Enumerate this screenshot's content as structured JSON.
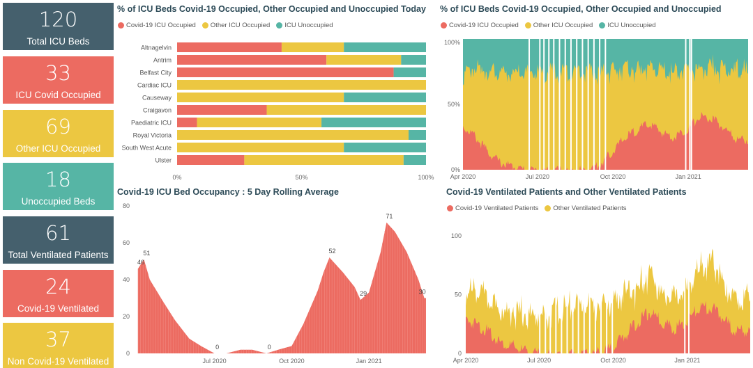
{
  "colors": {
    "covid": "#ec6b61",
    "other": "#ecc741",
    "unocc": "#56b5a5",
    "dark": "#45606d"
  },
  "kpis": [
    {
      "value": "120",
      "label": "Total ICU Beds",
      "color": "#45606d"
    },
    {
      "value": "33",
      "label": "ICU Covid Occupied",
      "color": "#ec6b61"
    },
    {
      "value": "69",
      "label": "Other ICU Occupied",
      "color": "#ecc741"
    },
    {
      "value": "18",
      "label": "Unoccupied Beds",
      "color": "#56b5a5"
    },
    {
      "value": "61",
      "label": "Total Ventilated Patients",
      "color": "#45606d"
    },
    {
      "value": "24",
      "label": "Covid-19 Ventilated",
      "color": "#ec6b61"
    },
    {
      "value": "37",
      "label": "Non Covid-19 Ventilated",
      "color": "#ecc741"
    }
  ],
  "panels": {
    "today": {
      "title": "% of ICU Beds Covid-19 Occupied, Other Occupied and Unoccupied Today",
      "legend": [
        "Covid-19 ICU Occupied",
        "Other ICU Occupied",
        "ICU Unoccupied"
      ]
    },
    "history": {
      "title": "% of ICU Beds Covid-19 Occupied, Other Occupied and Unoccupied",
      "legend": [
        "Covid-19 ICU Occupied",
        "Other ICU Occupied",
        "ICU Unoccupied"
      ]
    },
    "rolling": {
      "title": "Covid-19 ICU Bed Occupancy : 5 Day Rolling Average"
    },
    "ventilated": {
      "title": "Covid-19 Ventilated Patients and Other Ventilated Patients",
      "legend": [
        "Covid-19 Ventilated Patients",
        "Other Ventilated Patients"
      ]
    }
  },
  "chart_data": [
    {
      "type": "bar",
      "orientation": "horizontal",
      "stacked": "percent",
      "title": "% of ICU Beds Covid-19 Occupied, Other Occupied and Unoccupied Today",
      "categories": [
        "Altnagelvin",
        "Antrim",
        "Belfast City",
        "Cardiac ICU",
        "Causeway",
        "Craigavon",
        "Paediatric ICU",
        "Royal Victoria",
        "South West Acute",
        "Ulster"
      ],
      "series": [
        {
          "name": "Covid-19 ICU Occupied",
          "values": [
            42,
            60,
            87,
            0,
            0,
            36,
            8,
            0,
            0,
            27
          ]
        },
        {
          "name": "Other ICU Occupied",
          "values": [
            25,
            30,
            0,
            100,
            67,
            64,
            50,
            93,
            67,
            64
          ]
        },
        {
          "name": "ICU Unoccupied",
          "values": [
            33,
            10,
            13,
            0,
            33,
            0,
            42,
            7,
            33,
            9
          ]
        }
      ],
      "xticks": [
        "0%",
        "50%",
        "100%"
      ],
      "xlim": [
        0,
        100
      ],
      "legend_position": "top-left"
    },
    {
      "type": "area",
      "stacked": "percent",
      "title": "% of ICU Beds Covid-19 Occupied, Other Occupied and Unoccupied",
      "series_names": [
        "Covid-19 ICU Occupied",
        "Other ICU Occupied",
        "ICU Unoccupied"
      ],
      "x": [
        "2020-04-01",
        "2020-04-15",
        "2020-05-01",
        "2020-05-15",
        "2020-06-01",
        "2020-06-15",
        "2020-07-01",
        "2020-07-15",
        "2020-08-01",
        "2020-08-15",
        "2020-09-01",
        "2020-09-15",
        "2020-10-01",
        "2020-10-15",
        "2020-11-01",
        "2020-11-15",
        "2020-12-01",
        "2020-12-15",
        "2021-01-01",
        "2021-01-15",
        "2021-02-01",
        "2021-02-15",
        "2021-03-01"
      ],
      "covid_pct": [
        35,
        28,
        16,
        8,
        4,
        2,
        1,
        1,
        1,
        1,
        2,
        6,
        16,
        26,
        33,
        37,
        30,
        27,
        33,
        43,
        40,
        33,
        25
      ],
      "other_pct": [
        45,
        55,
        66,
        72,
        74,
        77,
        78,
        78,
        79,
        80,
        78,
        74,
        66,
        58,
        50,
        46,
        52,
        55,
        50,
        40,
        43,
        50,
        58
      ],
      "xticks": [
        "Apr 2020",
        "Jul 2020",
        "Oct 2020",
        "Jan 2021"
      ],
      "yticks": [
        "0%",
        "50%",
        "100%"
      ],
      "ylim": [
        0,
        100
      ],
      "legend_position": "top-left"
    },
    {
      "type": "area",
      "title": "Covid-19 ICU Bed Occupancy : 5 Day Rolling Average",
      "x": [
        "2020-04-01",
        "2020-04-08",
        "2020-04-15",
        "2020-05-01",
        "2020-05-15",
        "2020-06-01",
        "2020-06-15",
        "2020-07-01",
        "2020-07-15",
        "2020-08-01",
        "2020-08-15",
        "2020-09-01",
        "2020-09-15",
        "2020-10-01",
        "2020-10-15",
        "2020-11-01",
        "2020-11-08",
        "2020-11-15",
        "2020-12-01",
        "2020-12-15",
        "2020-12-22",
        "2021-01-01",
        "2021-01-15",
        "2021-01-22",
        "2021-02-01",
        "2021-02-15",
        "2021-03-01",
        "2021-03-08"
      ],
      "values": [
        46,
        51,
        40,
        28,
        18,
        8,
        4,
        0,
        0,
        2,
        2,
        0,
        2,
        4,
        16,
        34,
        44,
        52,
        44,
        36,
        29,
        33,
        55,
        71,
        66,
        55,
        40,
        30
      ],
      "annotations": [
        {
          "x": "2020-04-01",
          "value": 46,
          "label": "46"
        },
        {
          "x": "2020-04-08",
          "value": 51,
          "label": "51"
        },
        {
          "x": "2020-07-01",
          "value": 0,
          "label": "0"
        },
        {
          "x": "2020-09-01",
          "value": 0,
          "label": "0"
        },
        {
          "x": "2020-11-15",
          "value": 52,
          "label": "52"
        },
        {
          "x": "2020-12-22",
          "value": 29,
          "label": "29"
        },
        {
          "x": "2021-01-22",
          "value": 71,
          "label": "71"
        },
        {
          "x": "2021-03-08",
          "value": 30,
          "label": "30"
        }
      ],
      "xticks": [
        "Jul 2020",
        "Oct 2020",
        "Jan 2021"
      ],
      "yticks": [
        "0",
        "20",
        "40",
        "60",
        "80"
      ],
      "ylim": [
        0,
        80
      ]
    },
    {
      "type": "area",
      "stacked": true,
      "title": "Covid-19 Ventilated Patients and Other Ventilated Patients",
      "x": [
        "2020-04-01",
        "2020-04-15",
        "2020-05-01",
        "2020-05-15",
        "2020-06-01",
        "2020-06-15",
        "2020-07-01",
        "2020-07-15",
        "2020-08-01",
        "2020-08-15",
        "2020-09-01",
        "2020-09-15",
        "2020-10-01",
        "2020-10-15",
        "2020-11-01",
        "2020-11-15",
        "2020-12-01",
        "2020-12-15",
        "2021-01-01",
        "2021-01-15",
        "2021-02-01",
        "2021-02-15",
        "2021-03-01"
      ],
      "series": [
        {
          "name": "Covid-19 Ventilated Patients",
          "values": [
            32,
            28,
            20,
            12,
            8,
            4,
            2,
            1,
            1,
            1,
            1,
            3,
            8,
            18,
            30,
            38,
            30,
            24,
            30,
            42,
            42,
            32,
            22
          ]
        },
        {
          "name": "Other Ventilated Patients",
          "values": [
            28,
            38,
            34,
            36,
            36,
            38,
            38,
            40,
            44,
            48,
            48,
            46,
            44,
            42,
            36,
            38,
            32,
            34,
            36,
            40,
            46,
            36,
            36
          ]
        }
      ],
      "xticks": [
        "Apr 2020",
        "Jul 2020",
        "Oct 2020",
        "Jan 2021"
      ],
      "yticks": [
        "0",
        "50",
        "100"
      ],
      "ylim": [
        0,
        110
      ],
      "legend_position": "top-left"
    }
  ]
}
